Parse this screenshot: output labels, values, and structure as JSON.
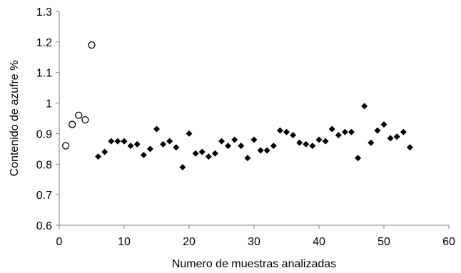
{
  "chart_data": {
    "type": "scatter",
    "title": "",
    "xlabel": "Numero de muestras analizadas",
    "ylabel": "Contenido de azufre %",
    "xlim": [
      0,
      60
    ],
    "ylim": [
      0.6,
      1.3
    ],
    "xticks": [
      "0",
      "10",
      "20",
      "30",
      "40",
      "50",
      "60"
    ],
    "yticks": [
      "0.6",
      "0.7",
      "0.8",
      "0.9",
      "1",
      "1.1",
      "1.2",
      "1.3"
    ],
    "xtick_values": [
      0,
      10,
      20,
      30,
      40,
      50,
      60
    ],
    "ytick_values": [
      0.6,
      0.7,
      0.8,
      0.9,
      1.0,
      1.1,
      1.2,
      1.3
    ],
    "grid": false,
    "legend": "none",
    "colors": {
      "marker": "#000000",
      "axis": "#808080"
    },
    "series": [
      {
        "marker": "open-circle",
        "points": [
          [
            1,
            0.86
          ],
          [
            2,
            0.93
          ],
          [
            3,
            0.96
          ],
          [
            4,
            0.945
          ],
          [
            5,
            1.19
          ]
        ]
      },
      {
        "marker": "filled-diamond",
        "points": [
          [
            6,
            0.825
          ],
          [
            7,
            0.84
          ],
          [
            8,
            0.875
          ],
          [
            9,
            0.875
          ],
          [
            10,
            0.875
          ],
          [
            11,
            0.86
          ],
          [
            12,
            0.865
          ],
          [
            13,
            0.83
          ],
          [
            14,
            0.85
          ],
          [
            15,
            0.915
          ],
          [
            16,
            0.865
          ],
          [
            17,
            0.875
          ],
          [
            18,
            0.855
          ],
          [
            19,
            0.79
          ],
          [
            20,
            0.9
          ],
          [
            21,
            0.835
          ],
          [
            22,
            0.84
          ],
          [
            23,
            0.825
          ],
          [
            24,
            0.835
          ],
          [
            25,
            0.875
          ],
          [
            26,
            0.86
          ],
          [
            27,
            0.88
          ],
          [
            28,
            0.86
          ],
          [
            29,
            0.82
          ],
          [
            30,
            0.88
          ],
          [
            31,
            0.845
          ],
          [
            32,
            0.845
          ],
          [
            33,
            0.86
          ],
          [
            34,
            0.91
          ],
          [
            35,
            0.905
          ],
          [
            36,
            0.895
          ],
          [
            37,
            0.87
          ],
          [
            38,
            0.865
          ],
          [
            39,
            0.86
          ],
          [
            40,
            0.88
          ],
          [
            41,
            0.875
          ],
          [
            42,
            0.915
          ],
          [
            43,
            0.895
          ],
          [
            44,
            0.905
          ],
          [
            45,
            0.905
          ],
          [
            46,
            0.82
          ],
          [
            47,
            0.99
          ],
          [
            48,
            0.87
          ],
          [
            49,
            0.91
          ],
          [
            50,
            0.93
          ],
          [
            51,
            0.885
          ],
          [
            52,
            0.89
          ],
          [
            53,
            0.905
          ],
          [
            54,
            0.855
          ]
        ]
      }
    ]
  }
}
